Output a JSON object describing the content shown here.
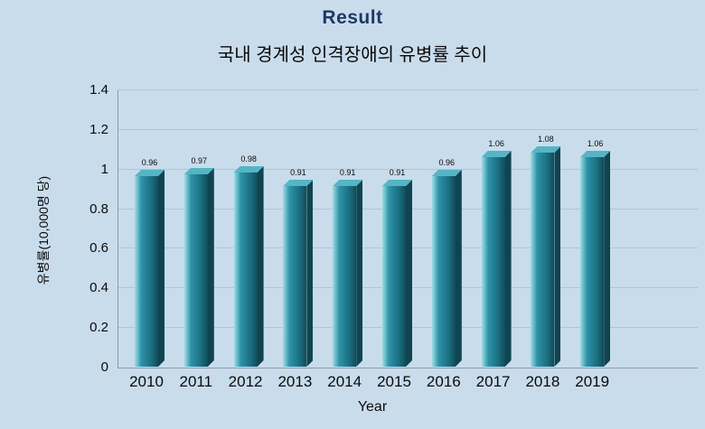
{
  "page": {
    "title": "Result",
    "subtitle": "국내 경계성 인격장애의 유병률 추이"
  },
  "chart_data": {
    "type": "bar",
    "title": "Result",
    "subtitle": "국내 경계성 인격장애의 유병률 추이",
    "categories": [
      "2010",
      "2011",
      "2012",
      "2013",
      "2014",
      "2015",
      "2016",
      "2017",
      "2018",
      "2019"
    ],
    "values": [
      0.96,
      0.97,
      0.98,
      0.91,
      0.91,
      0.91,
      0.96,
      1.06,
      1.08,
      1.06
    ],
    "value_labels": [
      "0.96",
      "0.97",
      "0.98",
      "0.91",
      "0.91",
      "0.91",
      "0.96",
      "1.06",
      "1.08",
      "1.06"
    ],
    "xlabel": "Year",
    "ylabel": "유병률(10,000명 당)",
    "ylim": [
      0,
      1.4
    ],
    "yticks": [
      0,
      0.2,
      0.4,
      0.6,
      0.8,
      1,
      1.2,
      1.4
    ],
    "ytick_labels": [
      "0",
      "0.2",
      "0.4",
      "0.6",
      "0.8",
      "1",
      "1.2",
      "1.4"
    ],
    "grid": true,
    "legend": "none",
    "bar_style": "3d"
  },
  "colors": {
    "background": "#c9dcec",
    "title": "#1f3864",
    "gridline": "#b1c4d7",
    "axis": "#8e99a9",
    "text": "#0a0a0a",
    "bar_highlight": "#9edde6",
    "bar_mid": "#2e93a8",
    "bar_dark": "#1a6d80",
    "bar_edge": "#124c58",
    "bar_top": "#55b5c5",
    "bar_side": "#0f4450"
  }
}
